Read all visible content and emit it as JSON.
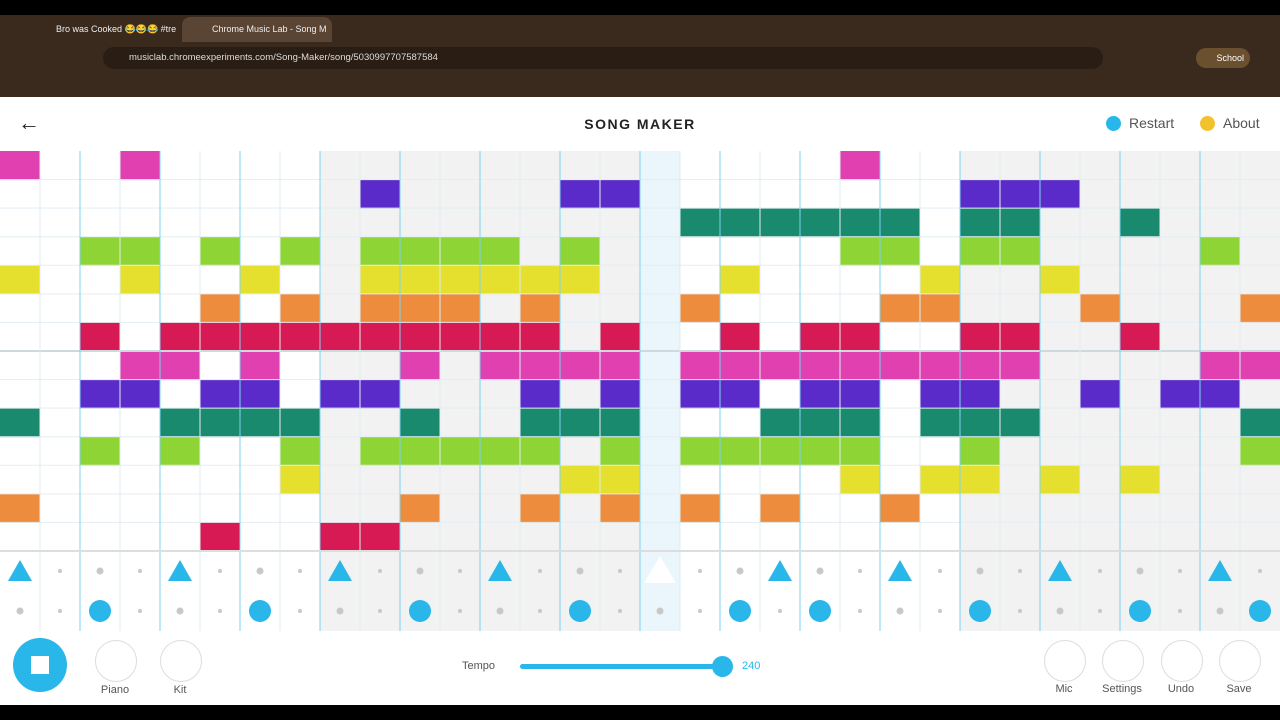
{
  "browser": {
    "tabs": [
      {
        "title": "Bro was Cooked 😂😂😂 #tre"
      },
      {
        "title": "Chrome Music Lab - Song M"
      }
    ],
    "url": "musiclab.chromeexperiments.com/Song-Maker/song/5030997707587584",
    "profile": "School"
  },
  "header": {
    "title": "SONG MAKER",
    "restart": "Restart",
    "about": "About"
  },
  "footer": {
    "piano": "Piano",
    "kit": "Kit",
    "tempo_label": "Tempo",
    "tempo": 240,
    "mic": "Mic",
    "settings": "Settings",
    "undo": "Undo",
    "save": "Save"
  }
}
